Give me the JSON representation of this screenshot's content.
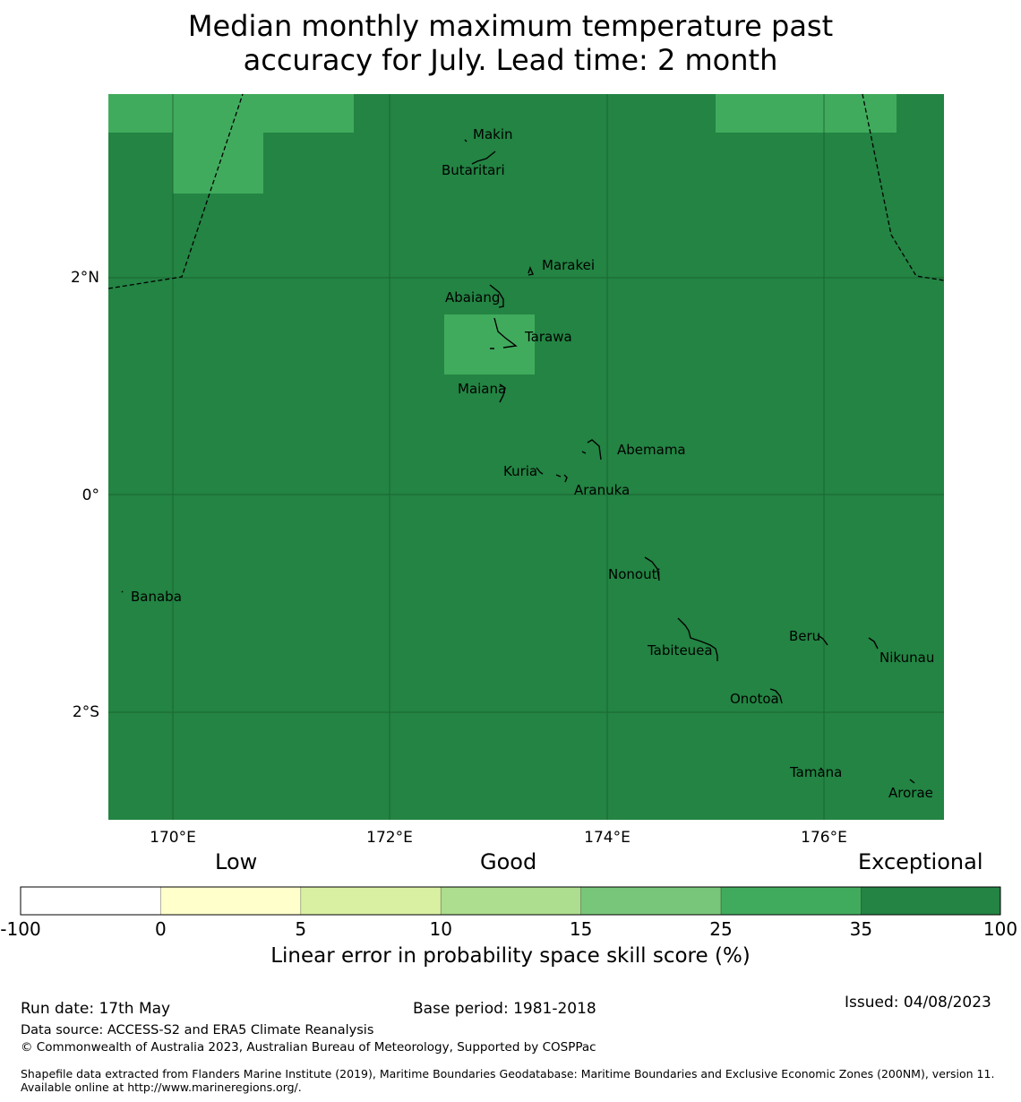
{
  "title": {
    "line1": "Median monthly maximum temperature past",
    "line2": "accuracy for July. Lead time: 2 month"
  },
  "map": {
    "lat_ticks": [
      "2°N",
      "0°",
      "2°S"
    ],
    "lon_ticks": [
      "170°E",
      "172°E",
      "174°E",
      "176°E"
    ],
    "islands": [
      "Makin",
      "Butaritari",
      "Marakei",
      "Abaiang",
      "Tarawa",
      "Maiana",
      "Abemama",
      "Kuria",
      "Aranuka",
      "Nonouti",
      "Banaba",
      "Beru",
      "Tabiteuea",
      "Nikunau",
      "Onotoa",
      "Tamana",
      "Arorae"
    ],
    "colors": {
      "exceptional": "#238443",
      "high_good": "#41ab5d",
      "grid": "#1a5e2f"
    }
  },
  "colorbar": {
    "categories": [
      "Low",
      "Good",
      "Exceptional"
    ],
    "ticks": [
      "-100",
      "0",
      "5",
      "10",
      "15",
      "25",
      "35",
      "100"
    ],
    "colors": [
      "#ffffff",
      "#ffffcc",
      "#d9f0a3",
      "#addd8e",
      "#78c679",
      "#41ab5d",
      "#238443"
    ],
    "label": "Linear error in probability space skill score (%)"
  },
  "footer": {
    "run_date": "Run date: 17th May",
    "base_period": "Base period: 1981-2018",
    "issued": "Issued: 04/08/2023",
    "data_source": "Data source: ACCESS-S2 and ERA5 Climate Reanalysis",
    "copyright": "© Commonwealth of Australia 2023, Australian Bureau of Meteorology, Supported by COSPPac",
    "shapefile": "Shapefile data extracted from Flanders Marine Institute (2019), Maritime Boundaries Geodatabase: Maritime Boundaries and Exclusive Economic Zones (200NM), version 11. Available online at http://www.marineregions.org/."
  }
}
